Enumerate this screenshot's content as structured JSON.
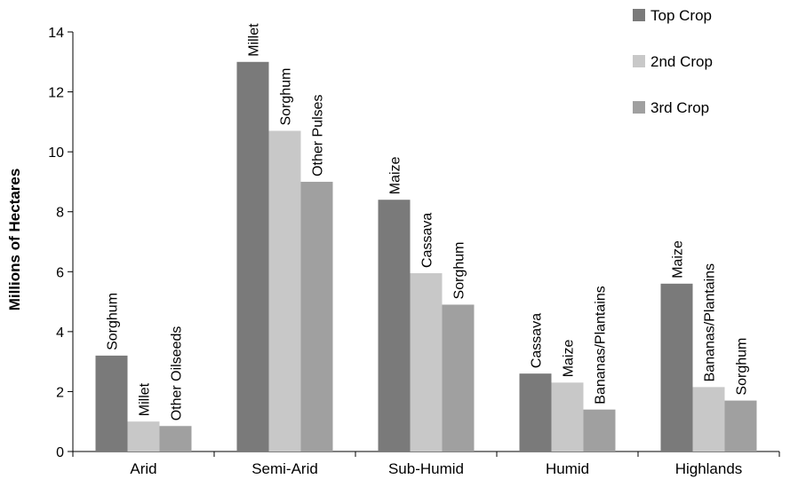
{
  "chart_data": {
    "type": "bar",
    "title": "",
    "xlabel": "",
    "ylabel": "Millions of Hectares",
    "ylim": [
      0,
      14
    ],
    "yticks": [
      0,
      2,
      4,
      6,
      8,
      10,
      12,
      14
    ],
    "grid": false,
    "legend_position": "top-right",
    "categories": [
      "Arid",
      "Semi-Arid",
      "Sub-Humid",
      "Humid",
      "Highlands"
    ],
    "series": [
      {
        "name": "Top Crop",
        "color": "#7a7a7a",
        "values": [
          3.2,
          13.0,
          8.4,
          2.6,
          5.6
        ],
        "labels": [
          "Sorghum",
          "Millet",
          "Maize",
          "Cassava",
          "Maize"
        ]
      },
      {
        "name": "2nd Crop",
        "color": "#c8c8c8",
        "values": [
          1.0,
          10.7,
          5.95,
          2.3,
          2.15
        ],
        "labels": [
          "Millet",
          "Sorghum",
          "Cassava",
          "Maize",
          "Bananas/Plantains"
        ]
      },
      {
        "name": "3rd Crop",
        "color": "#a0a0a0",
        "values": [
          0.85,
          9.0,
          4.9,
          1.4,
          1.7
        ],
        "labels": [
          "Other Oilseeds",
          "Other Pulses",
          "Sorghum",
          "Bananas/Plantains",
          "Sorghum"
        ]
      }
    ]
  }
}
